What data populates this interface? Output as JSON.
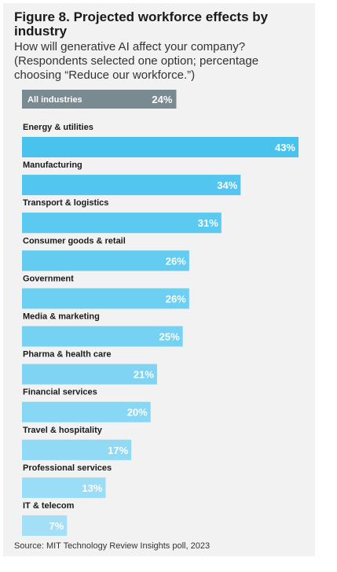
{
  "header": {
    "title": "Figure 8. Projected workforce effects by industry",
    "subtitle_line1": "How will generative AI affect your company?",
    "subtitle_line2": "(Respondents selected one option; percentage",
    "subtitle_line3": "choosing “Reduce our workforce.”)"
  },
  "footer": {
    "source": "Source: MIT Technology Review Insights poll, 2023"
  },
  "colors": {
    "total_bar": "#7a8a91",
    "bar_dark": "#49c3ee",
    "bar_light": "#a3e0f7"
  },
  "chart_data": {
    "type": "bar",
    "orientation": "horizontal",
    "value_suffix": "%",
    "total": {
      "label": "All industries",
      "value": 24
    },
    "categories": [
      "Energy & utilities",
      "Manufacturing",
      "Transport & logistics",
      "Consumer goods & retail",
      "Government",
      "Media & marketing",
      "Pharma & health care",
      "Financial services",
      "Travel & hospitality",
      "Professional services",
      "IT & telecom"
    ],
    "values": [
      43,
      34,
      31,
      26,
      26,
      25,
      21,
      20,
      17,
      13,
      7
    ],
    "xlim": [
      0,
      43
    ],
    "grid": false,
    "legend": "none"
  }
}
